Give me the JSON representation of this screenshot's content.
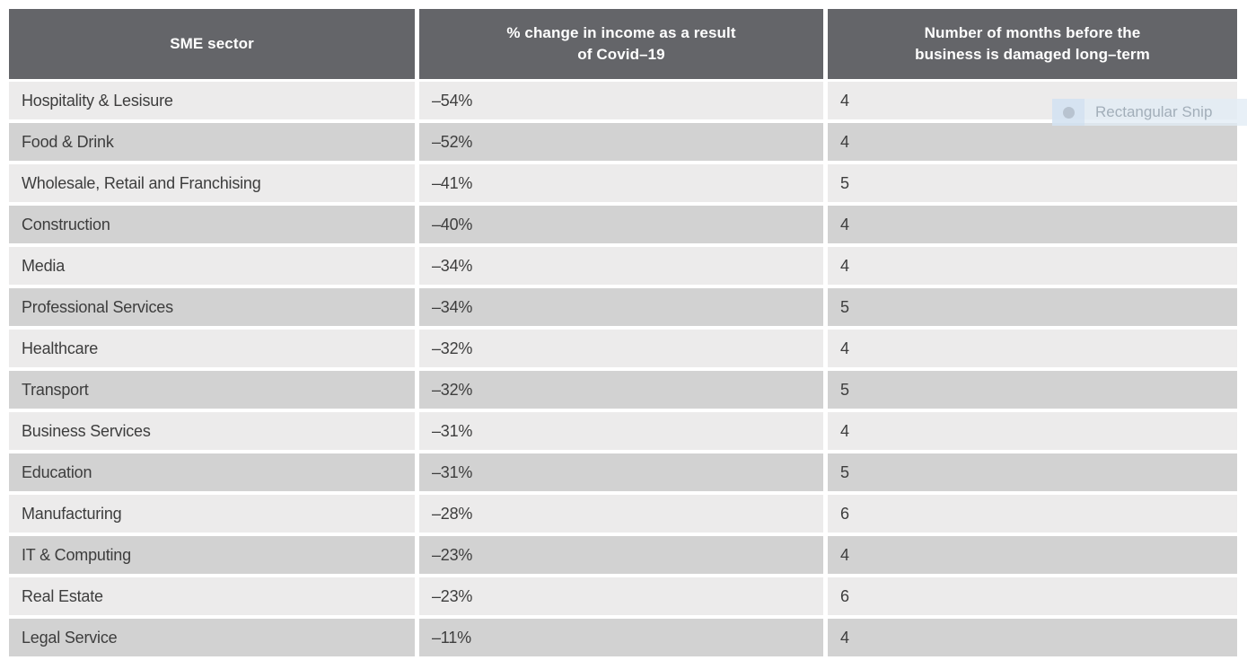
{
  "table": {
    "header": {
      "col1": {
        "line1": "SME sector"
      },
      "col2": {
        "line1": "% change in income as a result",
        "line2": "of Covid–19"
      },
      "col3": {
        "line1": "Number of months before the",
        "line2": "business is damaged long–term"
      }
    },
    "rows": [
      {
        "sector": "Hospitality & Lesisure",
        "income_change": "–54%",
        "months": "4"
      },
      {
        "sector": "Food & Drink",
        "income_change": "–52%",
        "months": "4"
      },
      {
        "sector": "Wholesale, Retail and Franchising",
        "income_change": "–41%",
        "months": "5"
      },
      {
        "sector": "Construction",
        "income_change": "–40%",
        "months": "4"
      },
      {
        "sector": "Media",
        "income_change": "–34%",
        "months": "4"
      },
      {
        "sector": "Professional Services",
        "income_change": "–34%",
        "months": "5"
      },
      {
        "sector": "Healthcare",
        "income_change": "–32%",
        "months": "4"
      },
      {
        "sector": "Transport",
        "income_change": "–32%",
        "months": "5"
      },
      {
        "sector": "Business Services",
        "income_change": "–31%",
        "months": "4"
      },
      {
        "sector": "Education",
        "income_change": "–31%",
        "months": "5"
      },
      {
        "sector": "Manufacturing",
        "income_change": "–28%",
        "months": "6"
      },
      {
        "sector": "IT & Computing",
        "income_change": "–23%",
        "months": "4"
      },
      {
        "sector": "Real Estate",
        "income_change": "–23%",
        "months": "6"
      },
      {
        "sector": "Legal Service",
        "income_change": "–11%",
        "months": "4"
      }
    ]
  },
  "snip_tooltip": {
    "label": "Rectangular Snip"
  },
  "colors": {
    "header_bg": "#646569",
    "row_light": "#ECEBEB",
    "row_dark": "#D2D2D2",
    "text": "#3D3D3D",
    "header_text": "#FFFFFF",
    "tooltip_bg": "#E2ECF5",
    "tooltip_text": "#8C99A5"
  },
  "chart_data": {
    "type": "table",
    "title": "",
    "columns": [
      "SME sector",
      "% change in income as a result of Covid–19",
      "Number of months before the business is damaged long–term"
    ],
    "rows": [
      [
        "Hospitality & Lesisure",
        -54,
        4
      ],
      [
        "Food & Drink",
        -52,
        4
      ],
      [
        "Wholesale, Retail and Franchising",
        -41,
        5
      ],
      [
        "Construction",
        -40,
        4
      ],
      [
        "Media",
        -34,
        4
      ],
      [
        "Professional Services",
        -34,
        5
      ],
      [
        "Healthcare",
        -32,
        4
      ],
      [
        "Transport",
        -32,
        5
      ],
      [
        "Business Services",
        -31,
        4
      ],
      [
        "Education",
        -31,
        5
      ],
      [
        "Manufacturing",
        -28,
        6
      ],
      [
        "IT & Computing",
        -23,
        4
      ],
      [
        "Real Estate",
        -23,
        6
      ],
      [
        "Legal Service",
        -11,
        4
      ]
    ]
  }
}
